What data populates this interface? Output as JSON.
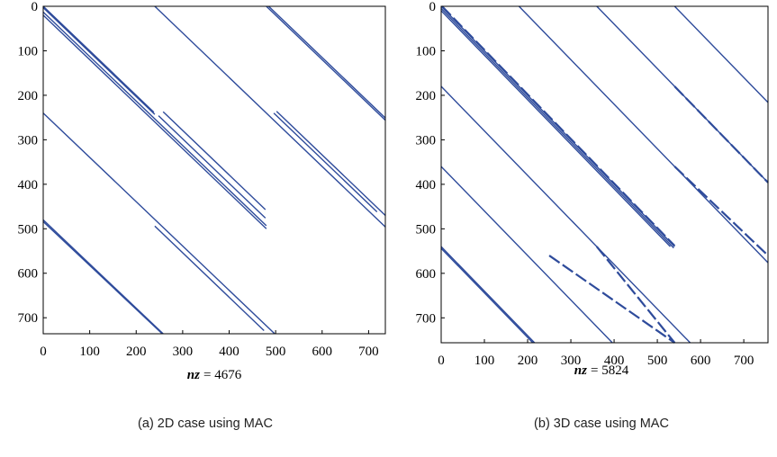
{
  "chart_data": [
    {
      "type": "scatter",
      "caption": "(a)  2D case using MAC",
      "nz_label": "nz",
      "nz_value": "= 4676",
      "xlim": [
        0,
        736
      ],
      "ylim": [
        0,
        736
      ],
      "x_ticks": [
        0,
        100,
        200,
        300,
        400,
        500,
        600,
        700
      ],
      "y_ticks": [
        0,
        100,
        200,
        300,
        400,
        500,
        600,
        700
      ],
      "grid": false,
      "mark_color": "#2e4b9b",
      "diagonals": [
        {
          "x": [
            0,
            238
          ],
          "y": [
            0,
            238
          ]
        },
        {
          "x": [
            0,
            240
          ],
          "y": [
            3,
            243
          ]
        },
        {
          "x": [
            248,
            478
          ],
          "y": [
            246,
            476
          ]
        },
        {
          "x": [
            0,
            480
          ],
          "y": [
            13,
            493
          ]
        },
        {
          "x": [
            0,
            480
          ],
          "y": [
            20,
            500
          ]
        },
        {
          "x": [
            0,
            498
          ],
          "y": [
            240,
            738
          ]
        },
        {
          "x": [
            0,
            258
          ],
          "y": [
            480,
            738
          ]
        },
        {
          "x": [
            0,
            256
          ],
          "y": [
            484,
            740
          ]
        },
        {
          "x": [
            240,
            475
          ],
          "y": [
            494,
            729
          ]
        },
        {
          "x": [
            258,
            478
          ],
          "y": [
            237,
            457
          ]
        },
        {
          "x": [
            240,
            736
          ],
          "y": [
            0,
            496
          ]
        },
        {
          "x": [
            480,
            736
          ],
          "y": [
            0,
            256
          ]
        },
        {
          "x": [
            485,
            736
          ],
          "y": [
            0,
            251
          ]
        },
        {
          "x": [
            496,
            718
          ],
          "y": [
            240,
            462
          ]
        },
        {
          "x": [
            502,
            736
          ],
          "y": [
            236,
            470
          ]
        }
      ]
    },
    {
      "type": "scatter",
      "caption": "(b)  3D case using MAC",
      "nz_label": "nz",
      "nz_value": "= 5824",
      "xlim": [
        0,
        756
      ],
      "ylim": [
        0,
        756
      ],
      "x_ticks": [
        0,
        100,
        200,
        300,
        400,
        500,
        600,
        700
      ],
      "y_ticks": [
        0,
        100,
        200,
        300,
        400,
        500,
        600,
        700
      ],
      "grid": false,
      "mark_color": "#2e4b9b",
      "diagonals": [
        {
          "x": [
            0,
            540
          ],
          "y": [
            0,
            540
          ]
        },
        {
          "x": [
            0,
            538
          ],
          "y": [
            5,
            543
          ]
        },
        {
          "x": [
            0,
            530
          ],
          "y": [
            10,
            540
          ]
        },
        {
          "x": [
            2,
            540
          ],
          "y": [
            0,
            538
          ],
          "dashed": true
        },
        {
          "x": [
            0,
            576
          ],
          "y": [
            180,
            756
          ]
        },
        {
          "x": [
            0,
            396
          ],
          "y": [
            360,
            756
          ]
        },
        {
          "x": [
            0,
            216
          ],
          "y": [
            540,
            756
          ]
        },
        {
          "x": [
            0,
            212
          ],
          "y": [
            544,
            756
          ]
        },
        {
          "x": [
            180,
            756
          ],
          "y": [
            0,
            576
          ]
        },
        {
          "x": [
            360,
            756
          ],
          "y": [
            0,
            396
          ]
        },
        {
          "x": [
            540,
            756
          ],
          "y": [
            0,
            216
          ]
        },
        {
          "x": [
            250,
            540
          ],
          "y": [
            560,
            756
          ],
          "dashed": true
        },
        {
          "x": [
            360,
            540
          ],
          "y": [
            540,
            756
          ],
          "dashed": true
        },
        {
          "x": [
            540,
            756
          ],
          "y": [
            180,
            396
          ],
          "dashed": true
        },
        {
          "x": [
            540,
            756
          ],
          "y": [
            360,
            560
          ],
          "dashed": true
        }
      ]
    }
  ]
}
